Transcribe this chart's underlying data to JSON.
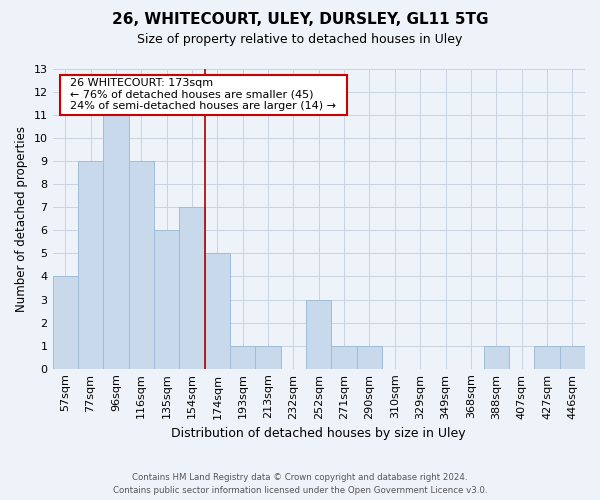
{
  "title1": "26, WHITECOURT, ULEY, DURSLEY, GL11 5TG",
  "title2": "Size of property relative to detached houses in Uley",
  "xlabel": "Distribution of detached houses by size in Uley",
  "ylabel": "Number of detached properties",
  "bar_labels": [
    "57sqm",
    "77sqm",
    "96sqm",
    "116sqm",
    "135sqm",
    "154sqm",
    "174sqm",
    "193sqm",
    "213sqm",
    "232sqm",
    "252sqm",
    "271sqm",
    "290sqm",
    "310sqm",
    "329sqm",
    "349sqm",
    "368sqm",
    "388sqm",
    "407sqm",
    "427sqm",
    "446sqm"
  ],
  "bar_values": [
    4,
    9,
    11,
    9,
    6,
    7,
    5,
    1,
    1,
    0,
    3,
    1,
    1,
    0,
    0,
    0,
    0,
    1,
    0,
    1,
    1
  ],
  "bar_color": "#c8d9ec",
  "bar_edge_color": "#a0bcd8",
  "property_line_index": 6,
  "property_line_color": "#aa0000",
  "annotation_title": "26 WHITECOURT: 173sqm",
  "annotation_line1": "← 76% of detached houses are smaller (45)",
  "annotation_line2": "24% of semi-detached houses are larger (14) →",
  "annotation_box_color": "#ffffff",
  "annotation_box_edge": "#cc0000",
  "ylim": [
    0,
    13
  ],
  "yticks": [
    0,
    1,
    2,
    3,
    4,
    5,
    6,
    7,
    8,
    9,
    10,
    11,
    12,
    13
  ],
  "footer1": "Contains HM Land Registry data © Crown copyright and database right 2024.",
  "footer2": "Contains public sector information licensed under the Open Government Licence v3.0.",
  "grid_color": "#c8d4e0",
  "bg_color": "#eef3f9"
}
